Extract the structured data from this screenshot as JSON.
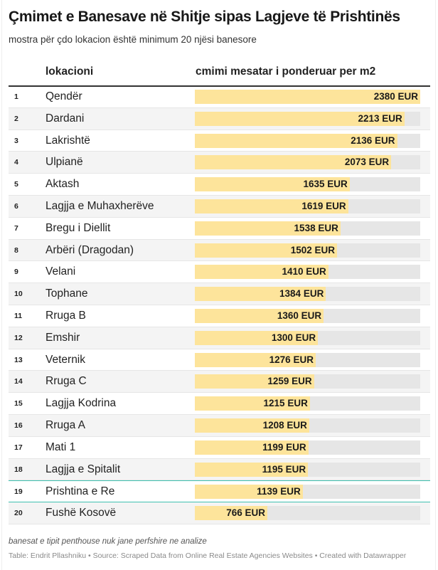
{
  "header": {
    "title": "Çmimet e Banesave në Shitje sipas Lagjeve të Prishtinës",
    "subtitle": "mostra për çdo lokacion është minimum 20 njësi banesore"
  },
  "colors": {
    "bar": "#fde49b",
    "track": "#e6e6e6",
    "highlight": "#3fc1b0",
    "stripe": "#f4f4f4"
  },
  "chart_data": {
    "type": "table",
    "title": "Çmimet e Banesave në Shitje sipas Lagjeve të Prishtinës",
    "subtitle": "mostra për çdo lokacion është minimum 20 njësi banesore",
    "columns": [
      "lokacioni",
      "cmimi mesatar i ponderuar per m2"
    ],
    "unit": "EUR",
    "max_value": 2380,
    "highlighted_rank": 19,
    "rows": [
      {
        "rank": "1",
        "location": "Qendër",
        "value": 2380,
        "label": "2380 EUR"
      },
      {
        "rank": "2",
        "location": "Dardani",
        "value": 2213,
        "label": "2213 EUR"
      },
      {
        "rank": "3",
        "location": "Lakrishtë",
        "value": 2136,
        "label": "2136 EUR"
      },
      {
        "rank": "4",
        "location": "Ulpianë",
        "value": 2073,
        "label": "2073 EUR"
      },
      {
        "rank": "5",
        "location": "Aktash",
        "value": 1635,
        "label": "1635 EUR"
      },
      {
        "rank": "6",
        "location": "Lagjja e Muhaxherëve",
        "value": 1619,
        "label": "1619 EUR"
      },
      {
        "rank": "7",
        "location": "Bregu i Diellit",
        "value": 1538,
        "label": "1538 EUR"
      },
      {
        "rank": "8",
        "location": "Arbëri (Dragodan)",
        "value": 1502,
        "label": "1502 EUR"
      },
      {
        "rank": "9",
        "location": "Velani",
        "value": 1410,
        "label": "1410 EUR"
      },
      {
        "rank": "10",
        "location": "Tophane",
        "value": 1384,
        "label": "1384 EUR"
      },
      {
        "rank": "11",
        "location": "Rruga B",
        "value": 1360,
        "label": "1360 EUR"
      },
      {
        "rank": "12",
        "location": "Emshir",
        "value": 1300,
        "label": "1300 EUR"
      },
      {
        "rank": "13",
        "location": "Veternik",
        "value": 1276,
        "label": "1276 EUR"
      },
      {
        "rank": "14",
        "location": "Rruga C",
        "value": 1259,
        "label": "1259 EUR"
      },
      {
        "rank": "15",
        "location": "Lagjja Kodrina",
        "value": 1215,
        "label": "1215 EUR"
      },
      {
        "rank": "16",
        "location": "Rruga A",
        "value": 1208,
        "label": "1208 EUR"
      },
      {
        "rank": "17",
        "location": "Mati 1",
        "value": 1199,
        "label": "1199 EUR"
      },
      {
        "rank": "18",
        "location": "Lagjja e Spitalit",
        "value": 1195,
        "label": "1195 EUR"
      },
      {
        "rank": "19",
        "location": "Prishtina e Re",
        "value": 1139,
        "label": "1139 EUR"
      },
      {
        "rank": "20",
        "location": "Fushë Kosovë",
        "value": 766,
        "label": "766 EUR"
      }
    ]
  },
  "footer": {
    "note": "banesat e tipit penthouse nuk jane perfshire ne analize",
    "source": "Table: Endrit Pllashniku • Source: Scraped Data from Online Real Estate Agencies Websites • Created with Datawrapper"
  }
}
